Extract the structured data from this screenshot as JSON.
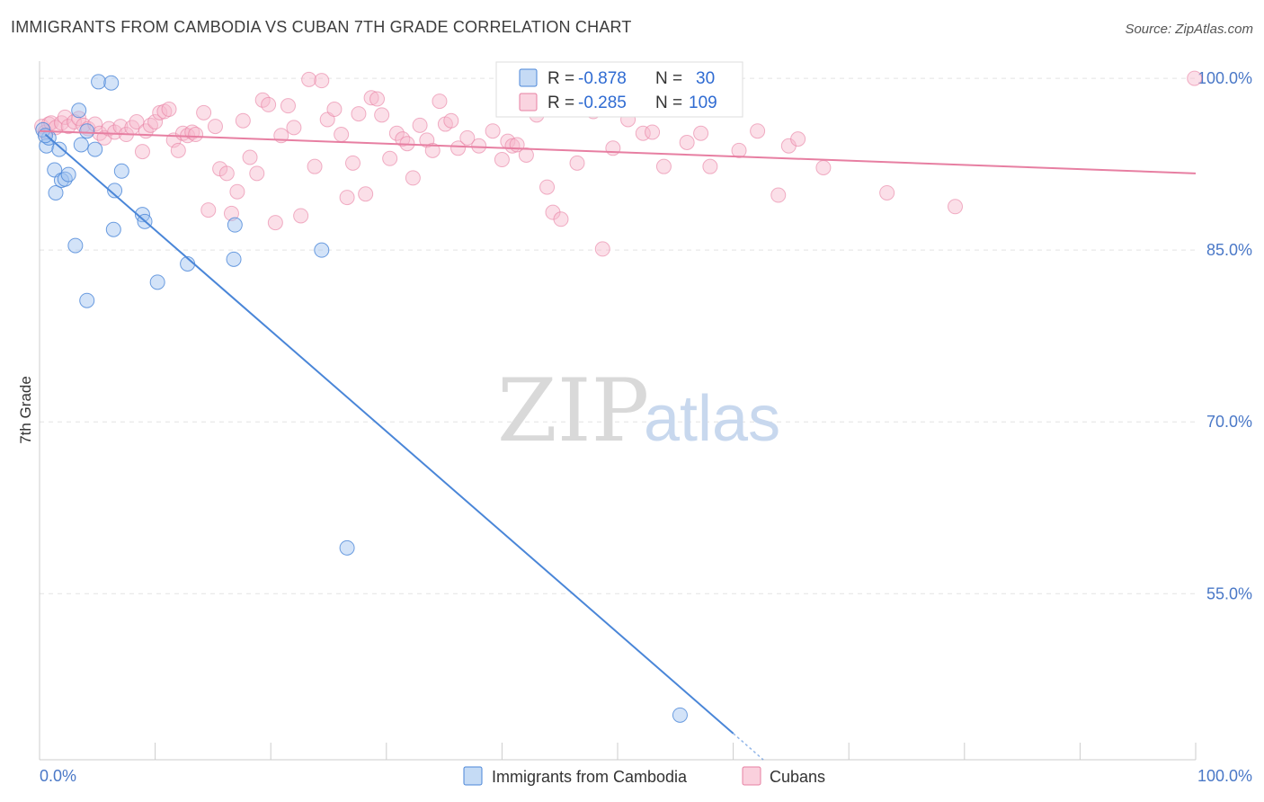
{
  "header": {
    "title": "IMMIGRANTS FROM CAMBODIA VS CUBAN 7TH GRADE CORRELATION CHART",
    "source": "Source: ZipAtlas.com"
  },
  "watermark": {
    "zip": "ZIP",
    "atlas": "atlas"
  },
  "legend_box": {
    "rows": [
      {
        "r_label": "R =",
        "r_value": "-0.878",
        "n_label": "N =",
        "n_value": "30",
        "color": "#9ec2ef",
        "stroke": "#4a86d8"
      },
      {
        "r_label": "R =",
        "r_value": "-0.285",
        "n_label": "N =",
        "n_value": "109",
        "color": "#f7b8cc",
        "stroke": "#e77fa2"
      }
    ]
  },
  "bottom_legend": [
    {
      "label": "Immigrants from Cambodia",
      "color": "#c5dbf5",
      "stroke": "#4a86d8"
    },
    {
      "label": "Cubans",
      "color": "#fad0dd",
      "stroke": "#e77fa2"
    }
  ],
  "chart_data": {
    "type": "scatter",
    "title": "IMMIGRANTS FROM CAMBODIA VS CUBAN 7TH GRADE CORRELATION CHART",
    "xlabel": "",
    "ylabel": "7th Grade",
    "xlim": [
      0,
      100
    ],
    "ylim": [
      40.5,
      101.5
    ],
    "x_tick_labels": [
      "0.0%",
      "100.0%"
    ],
    "y_ticks": [
      55,
      70,
      85,
      100
    ],
    "y_tick_labels": [
      "55.0%",
      "70.0%",
      "85.0%",
      "100.0%"
    ],
    "grid": true,
    "series": [
      {
        "name": "Immigrants from Cambodia",
        "color": "#4a86d8",
        "fill": "#9ec2ef",
        "points": [
          [
            0.6,
            94.1
          ],
          [
            0.8,
            94.8
          ],
          [
            1.3,
            92.0
          ],
          [
            1.4,
            90.0
          ],
          [
            1.7,
            93.8
          ],
          [
            1.9,
            91.1
          ],
          [
            2.2,
            91.2
          ],
          [
            2.5,
            91.6
          ],
          [
            3.1,
            85.4
          ],
          [
            3.4,
            97.2
          ],
          [
            3.6,
            94.2
          ],
          [
            4.1,
            80.6
          ],
          [
            4.1,
            95.4
          ],
          [
            4.8,
            93.8
          ],
          [
            5.1,
            99.7
          ],
          [
            6.2,
            99.6
          ],
          [
            6.4,
            86.8
          ],
          [
            6.5,
            90.2
          ],
          [
            7.1,
            91.9
          ],
          [
            8.9,
            88.1
          ],
          [
            9.1,
            87.5
          ],
          [
            10.2,
            82.2
          ],
          [
            12.8,
            83.8
          ],
          [
            16.8,
            84.2
          ],
          [
            16.9,
            87.2
          ],
          [
            24.4,
            85.0
          ],
          [
            26.6,
            59.0
          ],
          [
            55.4,
            44.4
          ],
          [
            0.3,
            95.5
          ],
          [
            0.5,
            95.0
          ]
        ],
        "trend": {
          "x": [
            0.5,
            60.0
          ],
          "y": [
            95.1,
            42.8
          ]
        },
        "trend_dashed_extension": {
          "x": [
            60.0,
            62.6
          ],
          "y": [
            42.8,
            40.5
          ]
        }
      },
      {
        "name": "Cubans",
        "color": "#e77fa2",
        "fill": "#f7b8cc",
        "points": [
          [
            0.2,
            95.8
          ],
          [
            0.5,
            95.3
          ],
          [
            0.8,
            96.0
          ],
          [
            1.0,
            96.1
          ],
          [
            1.4,
            95.7
          ],
          [
            1.9,
            96.1
          ],
          [
            2.2,
            96.6
          ],
          [
            2.5,
            95.8
          ],
          [
            3.0,
            96.2
          ],
          [
            3.4,
            96.5
          ],
          [
            3.8,
            95.9
          ],
          [
            4.2,
            95.6
          ],
          [
            4.8,
            96.0
          ],
          [
            5.2,
            95.2
          ],
          [
            5.6,
            94.8
          ],
          [
            6.0,
            95.6
          ],
          [
            6.5,
            95.3
          ],
          [
            7.0,
            95.8
          ],
          [
            7.5,
            95.1
          ],
          [
            8.0,
            95.7
          ],
          [
            8.4,
            96.2
          ],
          [
            8.9,
            93.6
          ],
          [
            9.2,
            95.4
          ],
          [
            9.6,
            95.9
          ],
          [
            10.0,
            96.2
          ],
          [
            10.4,
            97.0
          ],
          [
            10.8,
            97.1
          ],
          [
            11.2,
            97.3
          ],
          [
            11.6,
            94.6
          ],
          [
            12.0,
            93.7
          ],
          [
            12.4,
            95.2
          ],
          [
            12.8,
            95.0
          ],
          [
            13.2,
            95.3
          ],
          [
            13.5,
            95.1
          ],
          [
            14.2,
            97.0
          ],
          [
            14.6,
            88.5
          ],
          [
            15.2,
            95.8
          ],
          [
            15.6,
            92.1
          ],
          [
            16.2,
            91.7
          ],
          [
            16.6,
            88.2
          ],
          [
            17.1,
            90.1
          ],
          [
            17.6,
            96.3
          ],
          [
            18.2,
            93.1
          ],
          [
            18.8,
            91.7
          ],
          [
            19.3,
            98.1
          ],
          [
            19.8,
            97.7
          ],
          [
            20.4,
            87.4
          ],
          [
            20.9,
            95.0
          ],
          [
            21.5,
            97.6
          ],
          [
            22.0,
            95.7
          ],
          [
            22.6,
            88.0
          ],
          [
            23.3,
            99.9
          ],
          [
            23.8,
            92.3
          ],
          [
            24.4,
            99.8
          ],
          [
            24.9,
            96.4
          ],
          [
            25.5,
            97.3
          ],
          [
            26.1,
            95.1
          ],
          [
            26.6,
            89.6
          ],
          [
            27.1,
            92.6
          ],
          [
            27.6,
            96.9
          ],
          [
            28.2,
            89.9
          ],
          [
            28.7,
            98.3
          ],
          [
            29.2,
            98.2
          ],
          [
            29.6,
            96.8
          ],
          [
            30.3,
            93.0
          ],
          [
            30.9,
            95.2
          ],
          [
            31.4,
            94.7
          ],
          [
            31.8,
            94.3
          ],
          [
            32.3,
            91.3
          ],
          [
            32.9,
            95.9
          ],
          [
            33.5,
            94.6
          ],
          [
            34.0,
            93.7
          ],
          [
            34.6,
            98.0
          ],
          [
            35.1,
            96.0
          ],
          [
            35.6,
            96.3
          ],
          [
            36.2,
            93.9
          ],
          [
            37.0,
            94.8
          ],
          [
            38.0,
            94.1
          ],
          [
            39.2,
            95.4
          ],
          [
            40.0,
            92.9
          ],
          [
            40.5,
            94.5
          ],
          [
            40.9,
            94.1
          ],
          [
            41.3,
            94.2
          ],
          [
            42.1,
            93.3
          ],
          [
            43.0,
            96.8
          ],
          [
            43.9,
            90.5
          ],
          [
            44.4,
            88.3
          ],
          [
            45.1,
            87.7
          ],
          [
            46.5,
            92.6
          ],
          [
            47.9,
            97.1
          ],
          [
            48.7,
            85.1
          ],
          [
            49.6,
            93.9
          ],
          [
            50.9,
            96.4
          ],
          [
            52.2,
            95.2
          ],
          [
            53.0,
            95.3
          ],
          [
            54.0,
            92.3
          ],
          [
            56.0,
            94.4
          ],
          [
            57.2,
            95.2
          ],
          [
            58.0,
            92.3
          ],
          [
            59.6,
            97.5
          ],
          [
            60.5,
            93.7
          ],
          [
            62.1,
            95.4
          ],
          [
            63.9,
            89.8
          ],
          [
            64.8,
            94.1
          ],
          [
            65.6,
            94.7
          ],
          [
            67.8,
            92.2
          ],
          [
            73.3,
            90.0
          ],
          [
            79.2,
            88.8
          ],
          [
            99.9,
            100.0
          ]
        ],
        "trend": {
          "x": [
            0.0,
            100.0
          ],
          "y": [
            95.4,
            91.7
          ]
        }
      }
    ]
  }
}
